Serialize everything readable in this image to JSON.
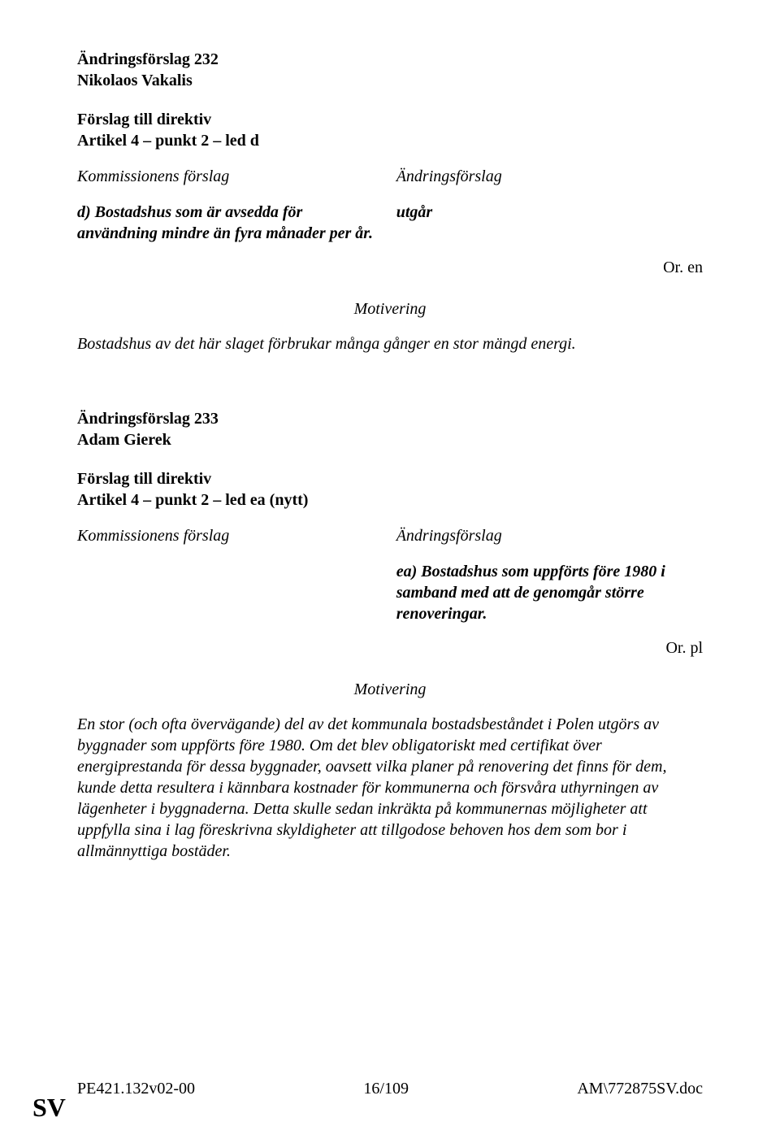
{
  "amendment232": {
    "title": "Ändringsförslag 232",
    "author": "Nikolaos Vakalis",
    "proposal_label": "Förslag till direktiv",
    "article_ref": "Artikel 4 – punkt 2 – led d",
    "col_left_header": "Kommissionens förslag",
    "col_right_header": "Ändringsförslag",
    "original_text": "d) Bostadshus som är avsedda för användning mindre än fyra månader per år.",
    "replacement_text": "utgår",
    "origin": "Or. en",
    "justification_label": "Motivering",
    "justification_text": "Bostadshus av det här slaget förbrukar många gånger en stor mängd energi."
  },
  "amendment233": {
    "title": "Ändringsförslag 233",
    "author": "Adam Gierek",
    "proposal_label": "Förslag till direktiv",
    "article_ref": "Artikel 4 – punkt 2 – led ea (nytt)",
    "col_left_header": "Kommissionens förslag",
    "col_right_header": "Ändringsförslag",
    "replacement_text": "ea) Bostadshus som uppförts före 1980 i samband med att de genomgår större renoveringar.",
    "origin": "Or. pl",
    "justification_label": "Motivering",
    "justification_text": "En stor (och ofta övervägande) del av det kommunala bostadsbeståndet i Polen utgörs av byggnader som uppförts före 1980. Om det blev obligatoriskt med certifikat över energiprestanda för dessa byggnader, oavsett vilka planer på renovering det finns för dem, kunde detta resultera i kännbara kostnader för kommunerna och försvåra uthyrningen av lägenheter i byggnaderna. Detta skulle sedan inkräkta på kommunernas möjligheter att uppfylla sina i lag föreskrivna skyldigheter att tillgodose behoven hos dem som bor i allmännyttiga bostäder."
  },
  "footer": {
    "left": "PE421.132v02-00",
    "center": "16/109",
    "right": "AM\\772875SV.doc",
    "lang": "SV"
  }
}
